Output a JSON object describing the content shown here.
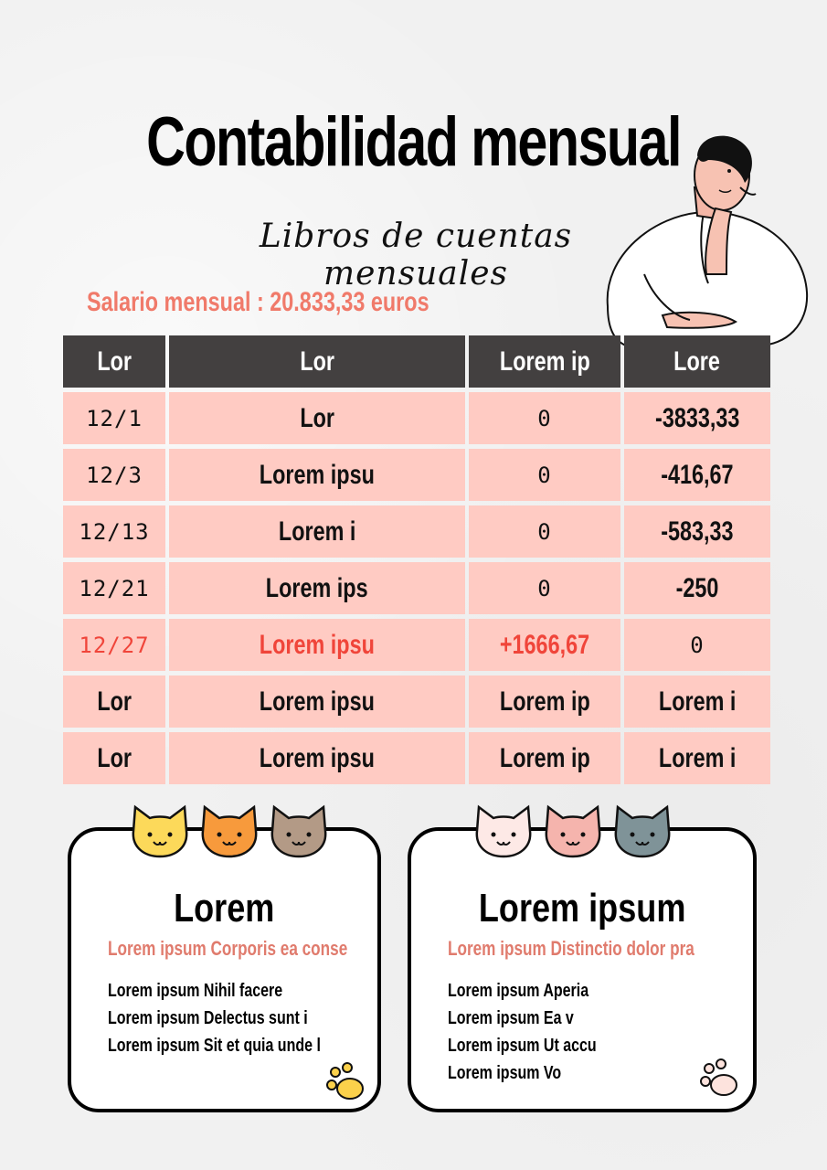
{
  "title": "Contabilidad mensual",
  "subtitle": "Libros de cuentas mensuales",
  "salary": "Salario mensual : 20.833,33 euros",
  "colors": {
    "header_bg": "#434040",
    "row_bg": "#ffcbc3",
    "accent": "#f07a6a",
    "highlight": "#f0453a"
  },
  "table": {
    "headers": [
      "Lor",
      "Lor",
      "Lorem ip",
      "Lore"
    ],
    "rows": [
      [
        "12/1",
        "Lor",
        "0",
        "-3833,33"
      ],
      [
        "12/3",
        "Lorem ipsu",
        "0",
        "-416,67"
      ],
      [
        "12/13",
        "Lorem i",
        "0",
        "-583,33"
      ],
      [
        "12/21",
        "Lorem ips",
        "0",
        "-250"
      ],
      [
        "12/27",
        "Lorem ipsu",
        "+1666,67",
        "0"
      ],
      [
        "Lor",
        "Lorem ipsu",
        "Lorem ip",
        "Lorem i"
      ],
      [
        "Lor",
        "Lorem ipsu",
        "Lorem ip",
        "Lorem i"
      ]
    ]
  },
  "cards": [
    {
      "title": "Lorem",
      "subtitle": "Lorem ipsum Corporis ea conse",
      "items": [
        "Lorem ipsum Nihil facere",
        "Lorem ipsum Delectus sunt i",
        "Lorem ipsum Sit et quia unde l"
      ],
      "cat_colors": [
        "#fcd95a",
        "#f79a3c",
        "#b39a86"
      ]
    },
    {
      "title": "Lorem ipsum",
      "subtitle": "Lorem ipsum Distinctio dolor pra",
      "items": [
        "Lorem ipsum Aperia",
        "Lorem ipsum Ea v",
        "Lorem ipsum Ut accu",
        "Lorem ipsum Vo"
      ],
      "cat_colors": [
        "#fde9e6",
        "#f5b4ad",
        "#7f9398"
      ]
    }
  ],
  "icons": [
    "person-thinking-illustration",
    "cat-face-icon",
    "paw-print-icon"
  ]
}
